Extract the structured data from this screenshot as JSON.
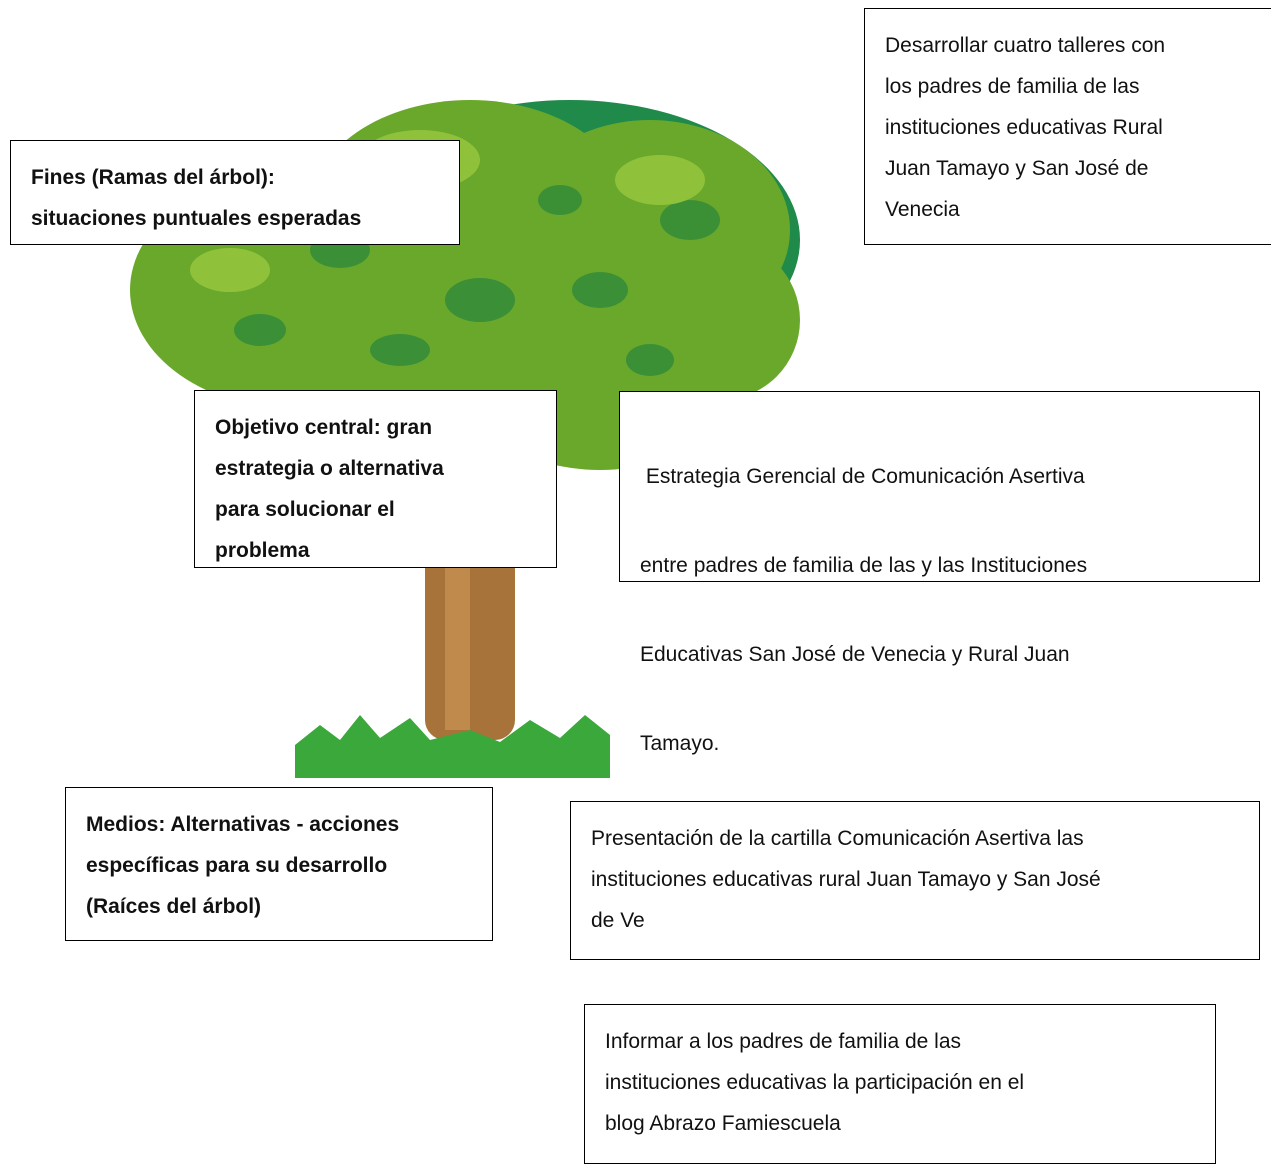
{
  "tree": {
    "fines": {
      "lines": [
        "Fines (Ramas del árbol):",
        "situaciones puntuales esperadas"
      ]
    },
    "fines_item": {
      "lines": [
        "Desarrollar cuatro talleres con",
        "los padres de familia de las",
        "instituciones educativas Rural",
        "Juan Tamayo y San José de",
        "Venecia"
      ]
    },
    "objetivo": {
      "lines": [
        "Objetivo central: gran",
        "estrategia o alternativa",
        "para solucionar el",
        "problema"
      ]
    },
    "objetivo_item": {
      "lines": [
        " Estrategia Gerencial de Comunicación Asertiva",
        "entre padres de familia de las y las Instituciones",
        "Educativas San José de Venecia y Rural Juan",
        "Tamayo."
      ]
    },
    "medios": {
      "lines": [
        "Medios: Alternativas - acciones",
        "específicas para su desarrollo",
        "(Raíces del árbol)"
      ]
    },
    "medios_items": [
      {
        "lines": [
          "Presentación de la cartilla Comunicación Asertiva las",
          "instituciones educativas rural Juan Tamayo y San José",
          "de Ve"
        ]
      },
      {
        "lines": [
          "Informar a los padres de familia de las",
          "instituciones educativas la participación en el",
          "blog Abrazo Famiescuela"
        ]
      }
    ]
  }
}
